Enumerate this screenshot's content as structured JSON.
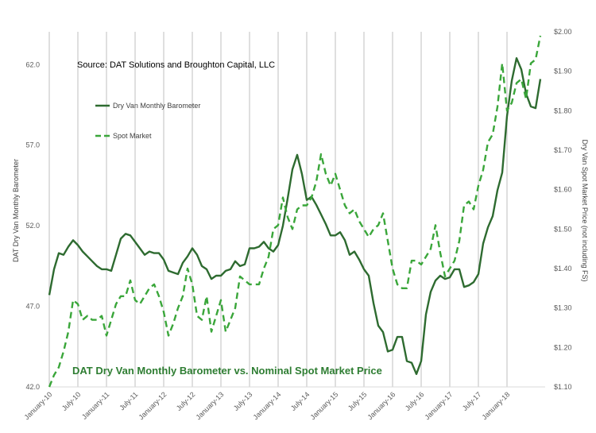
{
  "chart_data": {
    "type": "line",
    "title": "DAT Dry Van Monthly Barometer vs. Nominal Spot Market Price",
    "source": "Source: DAT Solutions and Broughton Capital, LLC",
    "ylabel_left": "DAT Dry Van Monthly Barometer",
    "ylabel_right": "Dry Van Spot Market Price (not including FS)",
    "ylim_left": [
      42.0,
      63.0
    ],
    "ylim_right": [
      1.1,
      2.0
    ],
    "yticks_left": [
      "42.0",
      "47.0",
      "52.0",
      "57.0",
      "62.0"
    ],
    "yticks_right": [
      "$1.10",
      "$1.20",
      "$1.30",
      "$1.40",
      "$1.50",
      "$1.60",
      "$1.70",
      "$1.80",
      "$1.90",
      "$2.00"
    ],
    "xticks": [
      "January-10",
      "July-10",
      "January-11",
      "July-11",
      "January-12",
      "July-12",
      "January-13",
      "July-13",
      "January-14",
      "July-14",
      "January-15",
      "July-15",
      "January-16",
      "July-16",
      "January-17",
      "July-17",
      "January-18"
    ],
    "grid": "vertical",
    "legend_position": "upper-left",
    "colors": {
      "barometer": "#2e6b30",
      "spot": "#3aa63a",
      "title": "#2e7d32",
      "grid": "#bfbfbf"
    },
    "series": [
      {
        "name": "Dry Van Monthly Barometer",
        "axis": "left",
        "style": "solid",
        "values": [
          47.7,
          49.3,
          50.3,
          50.2,
          50.7,
          51.1,
          50.8,
          50.4,
          50.1,
          49.8,
          49.5,
          49.3,
          49.3,
          49.2,
          50.2,
          51.2,
          51.5,
          51.4,
          51.0,
          50.6,
          50.2,
          50.4,
          50.3,
          50.3,
          49.9,
          49.2,
          49.1,
          49.0,
          49.7,
          50.1,
          50.6,
          50.2,
          49.5,
          49.3,
          48.7,
          48.9,
          48.9,
          49.2,
          49.3,
          49.8,
          49.5,
          49.6,
          50.6,
          50.6,
          50.7,
          51.0,
          50.6,
          50.4,
          50.8,
          52.0,
          53.7,
          55.5,
          56.4,
          55.2,
          53.6,
          53.8,
          53.3,
          52.7,
          52.1,
          51.4,
          51.4,
          51.6,
          51.1,
          50.2,
          50.4,
          49.9,
          49.3,
          48.9,
          47.2,
          45.8,
          45.4,
          44.2,
          44.3,
          45.1,
          45.1,
          43.6,
          43.5,
          42.8,
          43.6,
          46.5,
          47.9,
          48.6,
          48.9,
          48.7,
          48.8,
          49.3,
          49.3,
          48.2,
          48.3,
          48.5,
          49.0,
          50.9,
          51.9,
          52.6,
          54.2,
          55.3,
          58.8,
          61.0,
          62.4,
          61.7,
          60.2,
          59.4,
          59.3,
          61.1
        ]
      },
      {
        "name": "Spot Market",
        "axis": "right",
        "style": "dashed",
        "values": [
          1.1,
          1.13,
          1.15,
          1.19,
          1.24,
          1.32,
          1.31,
          1.27,
          1.28,
          1.27,
          1.27,
          1.28,
          1.23,
          1.27,
          1.31,
          1.33,
          1.33,
          1.37,
          1.32,
          1.31,
          1.33,
          1.35,
          1.36,
          1.33,
          1.29,
          1.23,
          1.26,
          1.3,
          1.33,
          1.4,
          1.36,
          1.28,
          1.27,
          1.33,
          1.24,
          1.28,
          1.32,
          1.24,
          1.27,
          1.3,
          1.38,
          1.37,
          1.36,
          1.36,
          1.36,
          1.4,
          1.43,
          1.5,
          1.51,
          1.58,
          1.53,
          1.5,
          1.55,
          1.56,
          1.56,
          1.58,
          1.62,
          1.69,
          1.64,
          1.61,
          1.64,
          1.6,
          1.56,
          1.54,
          1.55,
          1.52,
          1.5,
          1.48,
          1.5,
          1.51,
          1.54,
          1.47,
          1.4,
          1.36,
          1.35,
          1.35,
          1.42,
          1.42,
          1.41,
          1.43,
          1.45,
          1.51,
          1.44,
          1.38,
          1.4,
          1.42,
          1.47,
          1.56,
          1.57,
          1.55,
          1.61,
          1.65,
          1.72,
          1.74,
          1.81,
          1.92,
          1.8,
          1.82,
          1.87,
          1.88,
          1.83,
          1.92,
          1.93,
          1.99
        ]
      }
    ]
  }
}
